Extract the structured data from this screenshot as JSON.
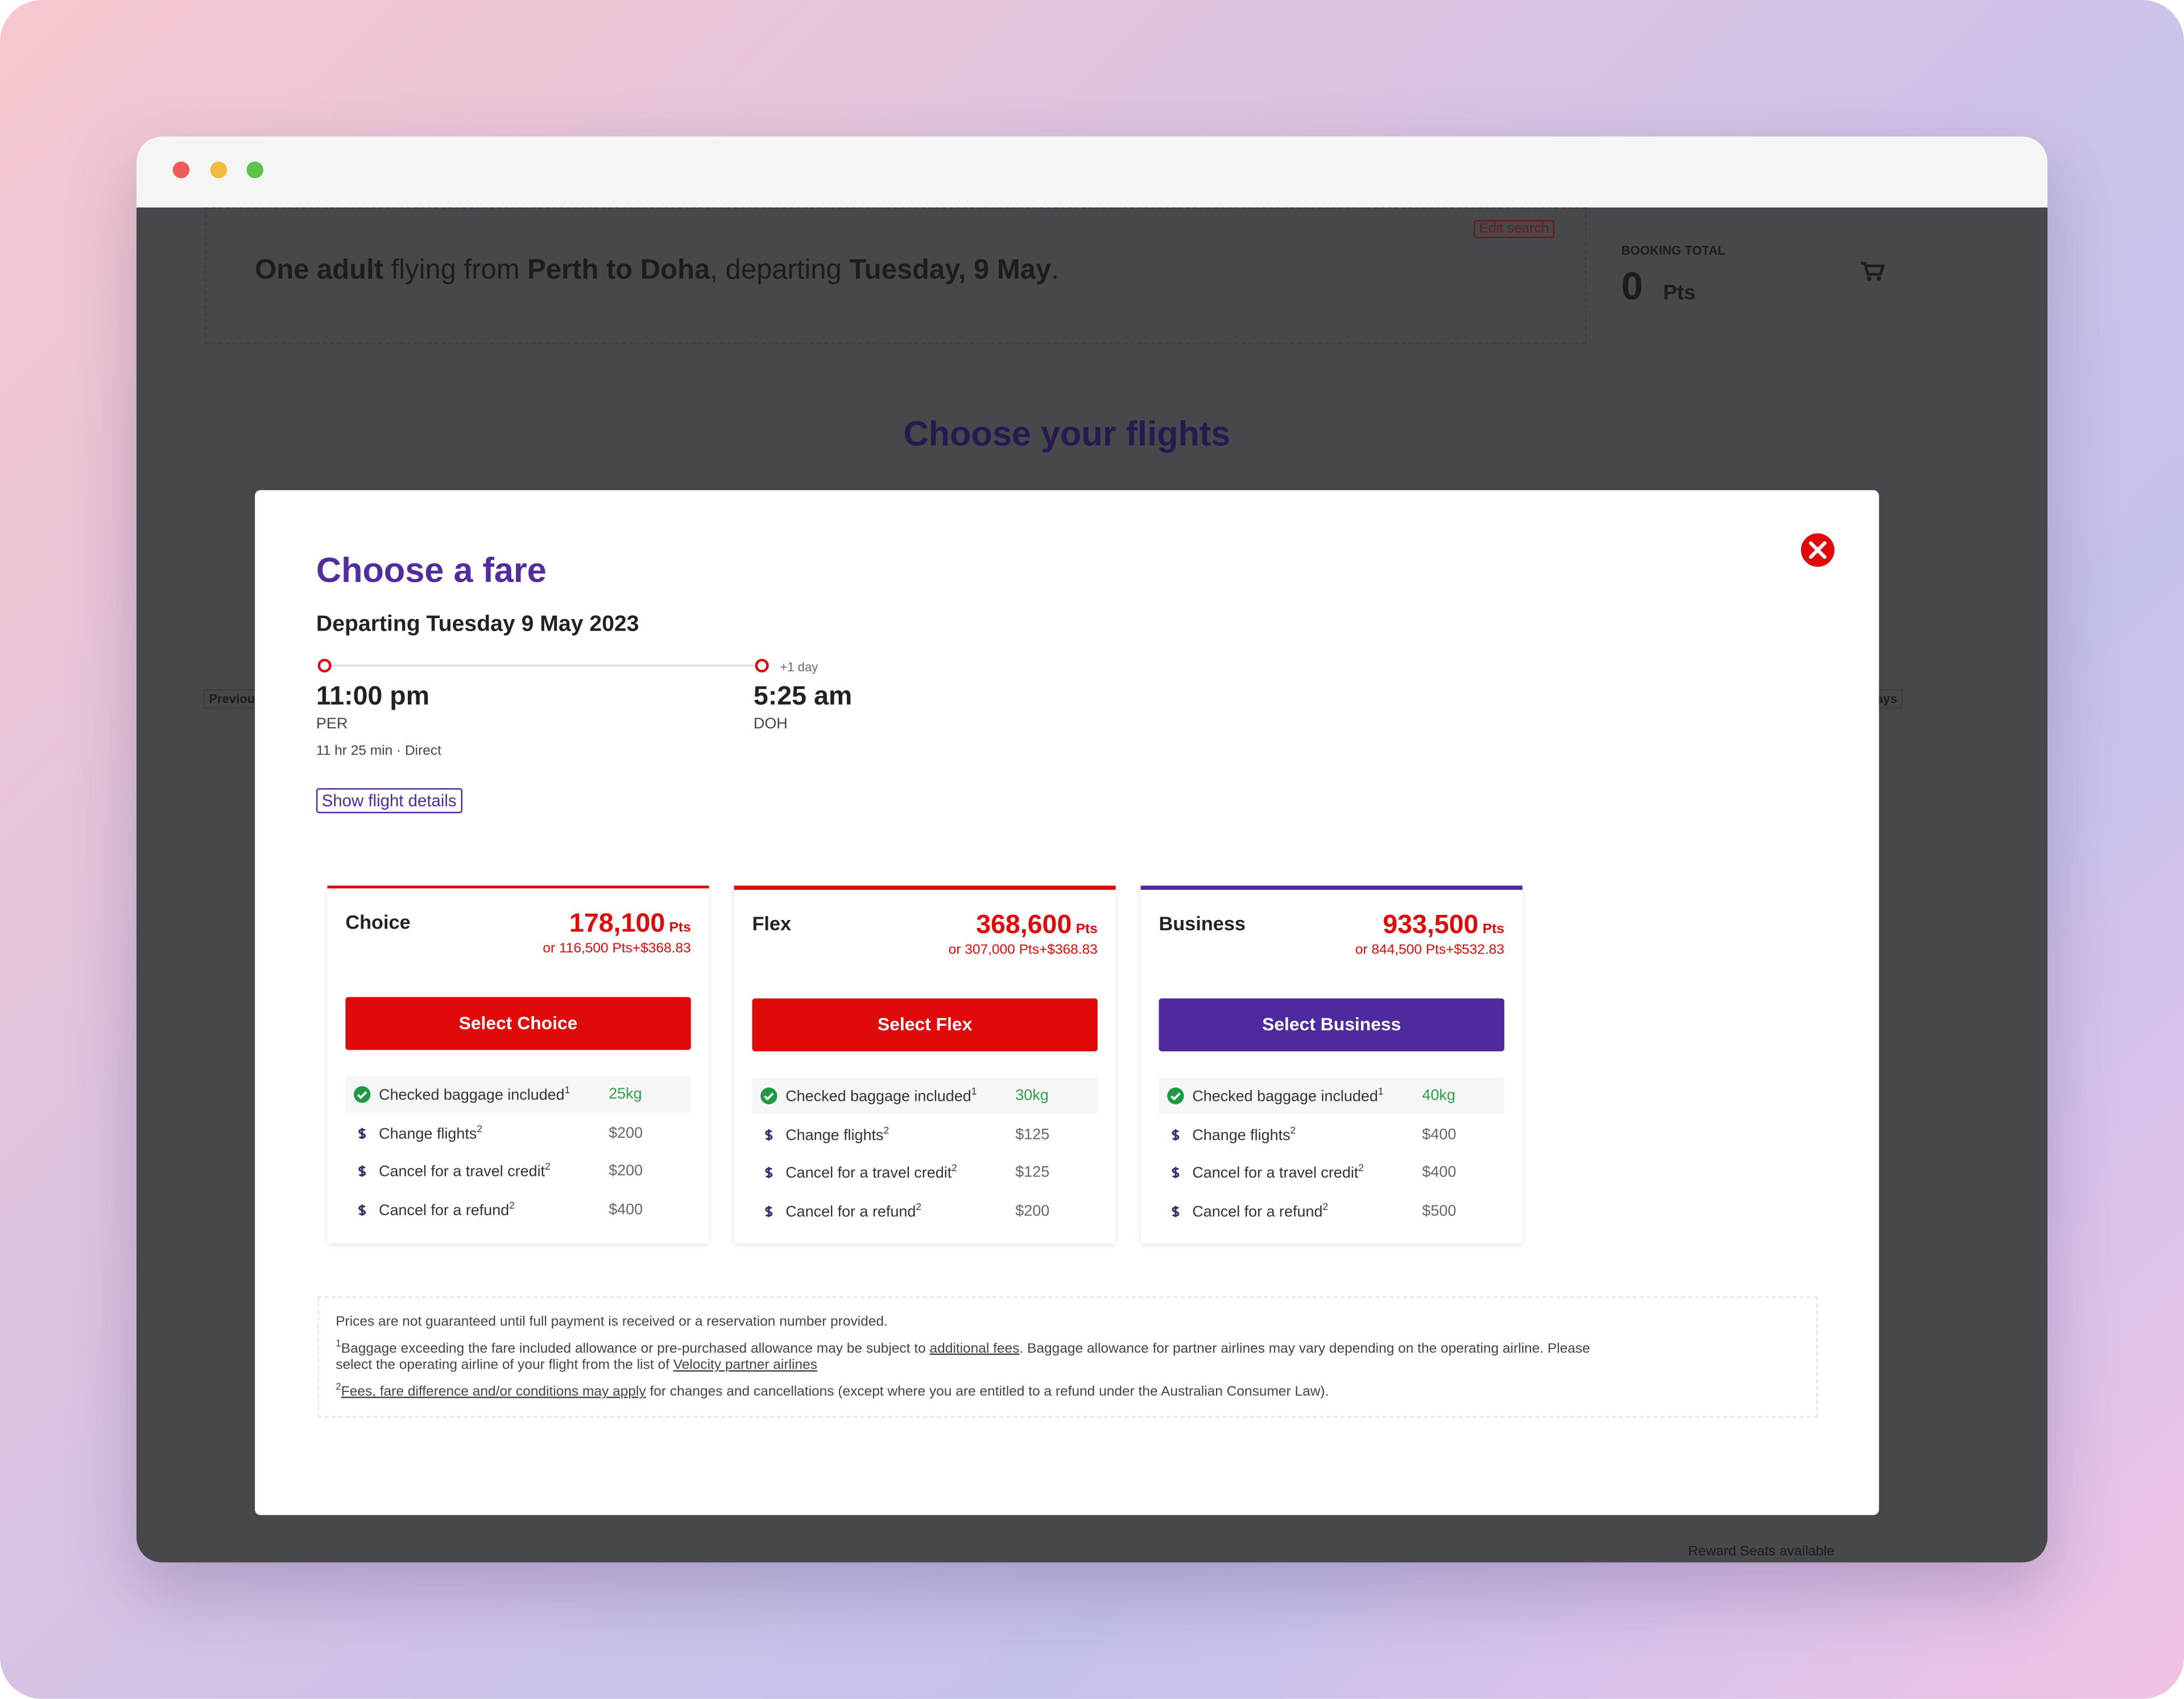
{
  "header": {
    "summary": [
      {
        "text": "One adult",
        "bold": true
      },
      {
        "text": " flying from "
      },
      {
        "text": "Perth to Doha",
        "bold": true
      },
      {
        "text": ", departing "
      },
      {
        "text": "Tuesday, 9 May",
        "bold": true
      },
      {
        "text": "."
      }
    ],
    "edit_search": "Edit search",
    "booking_total_label": "BOOKING TOTAL",
    "booking_total_value": "0",
    "booking_total_unit": "Pts"
  },
  "page": {
    "title": "Choose your flights",
    "previous_days": "Previous 7 days",
    "next_days": "Next 7 days",
    "reward_seats": "Reward Seats available"
  },
  "modal": {
    "title": "Choose a fare",
    "departing": "Departing Tuesday 9 May 2023",
    "departure": {
      "time": "11:00 pm",
      "airport": "PER"
    },
    "arrival": {
      "time": "5:25 am",
      "airport": "DOH",
      "day_offset": "+1 day"
    },
    "duration": "11 hr 25 min · Direct",
    "details_button": "Show flight details",
    "fares": [
      {
        "name": "Choice",
        "points": "178,100",
        "unit": "Pts",
        "alternative": "or 116,500 Pts+$368.83",
        "button": "Select Choice",
        "color": "#e10a0a",
        "features": [
          {
            "label": "Checked baggage included",
            "note": "1",
            "value": "25kg"
          },
          {
            "label": "Change flights",
            "note": "2",
            "value": "$200"
          },
          {
            "label": "Cancel for a travel credit",
            "note": "2",
            "value": "$200"
          },
          {
            "label": "Cancel for a refund",
            "note": "2",
            "value": "$400"
          }
        ]
      },
      {
        "name": "Flex",
        "points": "368,600",
        "unit": "Pts",
        "alternative": "or 307,000 Pts+$368.83",
        "button": "Select Flex",
        "color": "#e10a0a",
        "features": [
          {
            "label": "Checked baggage included",
            "note": "1",
            "value": "30kg"
          },
          {
            "label": "Change flights",
            "note": "2",
            "value": "$125"
          },
          {
            "label": "Cancel for a travel credit",
            "note": "2",
            "value": "$125"
          },
          {
            "label": "Cancel for a refund",
            "note": "2",
            "value": "$200"
          }
        ]
      },
      {
        "name": "Business",
        "points": "933,500",
        "unit": "Pts",
        "alternative": "or 844,500 Pts+$532.83",
        "button": "Select Business",
        "color": "#4f2a9e",
        "features": [
          {
            "label": "Checked baggage included",
            "note": "1",
            "value": "40kg"
          },
          {
            "label": "Change flights",
            "note": "2",
            "value": "$400"
          },
          {
            "label": "Cancel for a travel credit",
            "note": "2",
            "value": "$400"
          },
          {
            "label": "Cancel for a refund",
            "note": "2",
            "value": "$500"
          }
        ]
      }
    ],
    "footnotes": [
      {
        "parts": [
          {
            "text": "Prices are not guaranteed until full payment is received or a reservation number provided."
          }
        ]
      },
      {
        "note": "1",
        "parts": [
          {
            "text": "Baggage exceeding the fare included allowance or pre-purchased allowance may be subject to "
          },
          {
            "link": "additional fees"
          },
          {
            "text": ". Baggage allowance for partner airlines may vary depending on the operating airline. Please"
          },
          {
            "break": true,
            "text": "select the operating airline of your flight from the list of "
          },
          {
            "link": "Velocity partner airlines"
          }
        ]
      },
      {
        "note": "2",
        "parts": [
          {
            "link": "Fees, fare difference and/or conditions may apply"
          },
          {
            "text": " for changes and cancellations (except where you are entitled to a refund under the Australian Consumer Law)."
          }
        ]
      }
    ]
  }
}
